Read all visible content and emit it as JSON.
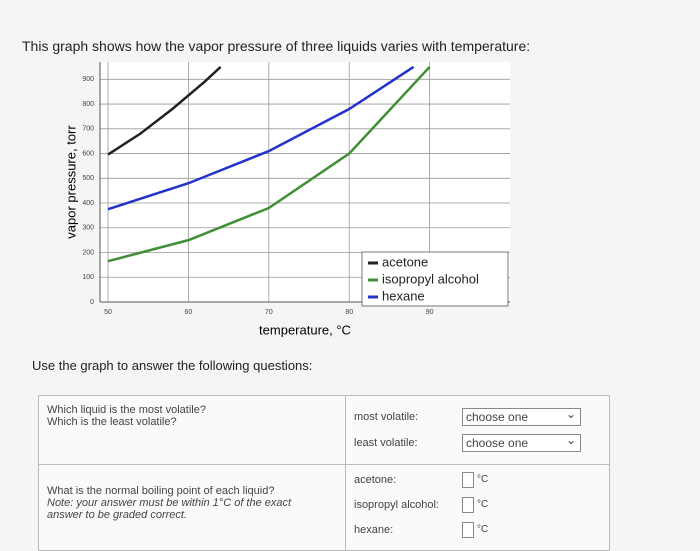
{
  "header": {
    "intro": "This graph shows how the vapor pressure of three liquids varies with temperature:"
  },
  "chart_data": {
    "type": "line",
    "x_label": "temperature, °C",
    "y_label": "vapor pressure, torr",
    "xlim": [
      49,
      100
    ],
    "ylim": [
      0,
      970
    ],
    "xticks": [
      50,
      60,
      70,
      80,
      90
    ],
    "yticks": [
      0,
      100,
      200,
      300,
      400,
      500,
      600,
      700,
      800,
      900
    ],
    "grid": true,
    "legend": "lower right",
    "series": [
      {
        "name": "acetone",
        "color": "#222222",
        "x": [
          50,
          54,
          58,
          62,
          64
        ],
        "values": [
          596,
          680,
          780,
          890,
          950
        ]
      },
      {
        "name": "isopropyl alcohol",
        "color": "#3f8f35",
        "x": [
          50,
          60,
          70,
          80,
          90
        ],
        "values": [
          165,
          250,
          380,
          600,
          950
        ]
      },
      {
        "name": "hexane",
        "color": "#2233cc",
        "x": [
          50,
          60,
          70,
          80,
          88
        ],
        "values": [
          375,
          480,
          610,
          780,
          950
        ]
      }
    ]
  },
  "instructions": "Use the graph to answer the following questions:",
  "questions": [
    {
      "prompt": [
        "Which liquid is the most volatile?",
        "Which is the least volatile?"
      ],
      "fields": [
        {
          "label": "most volatile:",
          "control": "choose one"
        },
        {
          "label": "least volatile:",
          "control": "choose one"
        }
      ]
    },
    {
      "prompt": [
        "What is the normal boiling point of each liquid?",
        "Note: your answer must be within 1°C of the exact",
        "answer to be graded correct."
      ],
      "fields": [
        {
          "label": "acetone:",
          "unit": "°C"
        },
        {
          "label": "isopropyl alcohol:",
          "unit": "°C"
        },
        {
          "label": "hexane:",
          "unit": "°C"
        }
      ]
    }
  ]
}
